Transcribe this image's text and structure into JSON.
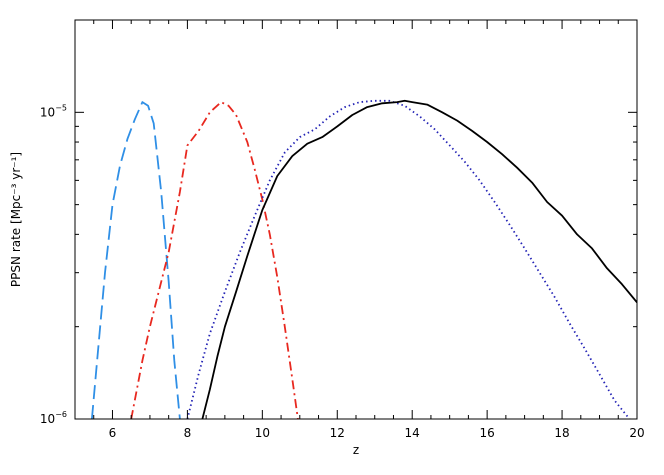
{
  "chart_data": {
    "type": "line",
    "xlabel": "z",
    "ylabel": "PPSN rate [Mpc⁻³ yr⁻¹]",
    "xlim": [
      5,
      20
    ],
    "ylim": [
      1e-06,
      2e-05
    ],
    "yscale": "log",
    "grid": false,
    "x_ticks": [
      6,
      8,
      10,
      12,
      14,
      16,
      18,
      20
    ],
    "x_tick_labels": [
      "6",
      "8",
      "10",
      "12",
      "14",
      "16",
      "18",
      "20"
    ],
    "y_ticks": [
      1e-06,
      1e-05
    ],
    "y_tick_labels": [
      {
        "base": "10",
        "exp": "−6"
      },
      {
        "base": "10",
        "exp": "−5"
      }
    ],
    "series": [
      {
        "style": "dashed",
        "color": "#2f8fe6",
        "x": [
          5.45,
          5.6,
          5.8,
          6.0,
          6.2,
          6.4,
          6.6,
          6.8,
          6.95,
          7.1,
          7.3,
          7.5,
          7.65,
          7.8
        ],
        "y": [
          1e-06,
          1.6e-06,
          3e-06,
          5e-06,
          6.7e-06,
          8.2e-06,
          9.5e-06,
          1.08e-05,
          1.05e-05,
          9.2e-06,
          5.5e-06,
          2.8e-06,
          1.55e-06,
          1e-06
        ]
      },
      {
        "style": "dashdot",
        "color": "#e8281f",
        "x": [
          6.5,
          6.8,
          7.0,
          7.2,
          7.5,
          7.8,
          8.0,
          8.3,
          8.6,
          8.9,
          9.1,
          9.3,
          9.6,
          9.8,
          10.0,
          10.2,
          10.4,
          10.6,
          10.8,
          10.95
        ],
        "y": [
          1e-06,
          1.55e-06,
          2e-06,
          2.5e-06,
          3.5e-06,
          5.5e-06,
          7.8e-06,
          8.7e-06,
          1e-05,
          1.08e-05,
          1.05e-05,
          9.8e-06,
          8e-06,
          6.5e-06,
          5.2e-06,
          4e-06,
          2.9e-06,
          2e-06,
          1.35e-06,
          1e-06
        ]
      },
      {
        "style": "dotted",
        "color": "#2323b5",
        "x": [
          8.0,
          8.3,
          8.6,
          9.0,
          9.4,
          9.8,
          10.2,
          10.6,
          11.0,
          11.4,
          11.8,
          12.2,
          12.6,
          13.0,
          13.4,
          13.8,
          14.2,
          14.6,
          15.0,
          15.4,
          15.8,
          16.2,
          16.6,
          17.0,
          17.4,
          17.8,
          18.2,
          18.6,
          19.0,
          19.4,
          19.8
        ],
        "y": [
          1e-06,
          1.4e-06,
          1.9e-06,
          2.6e-06,
          3.5e-06,
          4.6e-06,
          6e-06,
          7.4e-06,
          8.3e-06,
          8.8e-06,
          9.7e-06,
          1.04e-05,
          1.08e-05,
          1.09e-05,
          1.09e-05,
          1.05e-05,
          9.7e-06,
          8.8e-06,
          7.8e-06,
          6.9e-06,
          6e-06,
          5.1e-06,
          4.3e-06,
          3.6e-06,
          3e-06,
          2.5e-06,
          2.05e-06,
          1.7e-06,
          1.4e-06,
          1.15e-06,
          1e-06
        ]
      },
      {
        "style": "solid",
        "color": "#000000",
        "x": [
          8.4,
          8.6,
          8.8,
          9.0,
          9.3,
          9.6,
          10.0,
          10.4,
          10.8,
          11.2,
          11.6,
          12.0,
          12.4,
          12.8,
          13.2,
          13.6,
          13.8,
          14.0,
          14.4,
          14.8,
          15.2,
          15.6,
          16.0,
          16.4,
          16.8,
          17.2,
          17.6,
          18.0,
          18.4,
          18.8,
          19.2,
          19.6,
          20.0
        ],
        "y": [
          1e-06,
          1.25e-06,
          1.6e-06,
          2e-06,
          2.6e-06,
          3.4e-06,
          4.8e-06,
          6.2e-06,
          7.2e-06,
          7.9e-06,
          8.3e-06,
          9e-06,
          9.8e-06,
          1.04e-05,
          1.07e-05,
          1.08e-05,
          1.09e-05,
          1.08e-05,
          1.06e-05,
          1e-05,
          9.4e-06,
          8.7e-06,
          8e-06,
          7.3e-06,
          6.6e-06,
          5.9e-06,
          5.1e-06,
          4.6e-06,
          4e-06,
          3.6e-06,
          3.1e-06,
          2.75e-06,
          2.4e-06
        ]
      }
    ]
  }
}
